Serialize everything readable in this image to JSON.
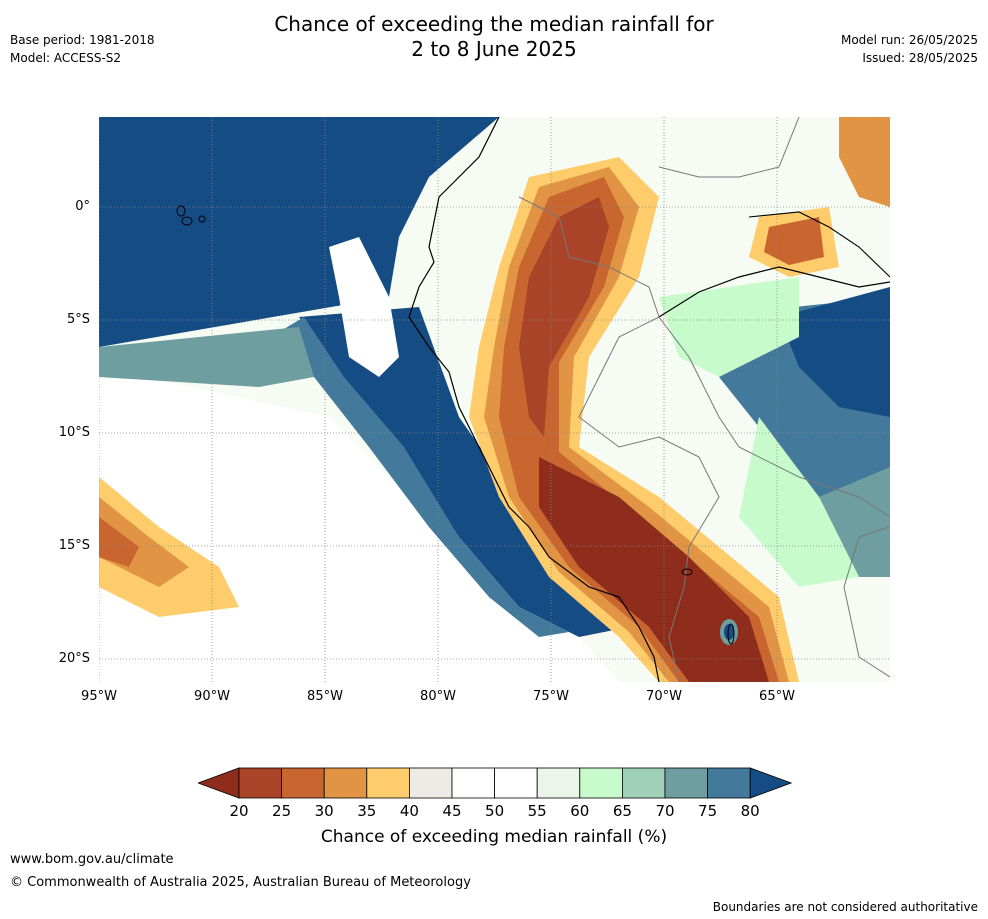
{
  "title_line1": "Chance of exceeding the median rainfall for",
  "title_line2": "2 to 8 June 2025",
  "meta_left": [
    "Base period: 1981-2018",
    "Model: ACCESS-S2"
  ],
  "meta_right": [
    "Model run: 26/05/2025",
    "Issued: 28/05/2025"
  ],
  "lat_labels": [
    "0°",
    "5°S",
    "10°S",
    "15°S",
    "20°S"
  ],
  "lon_labels": [
    "95°W",
    "90°W",
    "85°W",
    "80°W",
    "75°W",
    "70°W",
    "65°W"
  ],
  "colorbar": {
    "ticks": [
      "20",
      "25",
      "30",
      "35",
      "40",
      "45",
      "50",
      "55",
      "60",
      "65",
      "70",
      "75",
      "80"
    ],
    "colors": [
      "#a94428",
      "#c9652f",
      "#e09444",
      "#fecc6a",
      "#eeebe6",
      "#ffffff",
      "#ffffff",
      "#ebf5ea",
      "#c8fbcc",
      "#9fd1b8",
      "#6e9ea0",
      "#43799a"
    ],
    "low_extend_color": "#8f2d1d",
    "high_extend_color": "#154c84",
    "label": "Chance of exceeding median rainfall (%)"
  },
  "footer_url": "www.bom.gov.au/climate",
  "footer_copyright": "© Commonwealth of Australia 2025, Australian Bureau of Meteorology",
  "disclaimer": "Boundaries are not considered authoritative"
}
